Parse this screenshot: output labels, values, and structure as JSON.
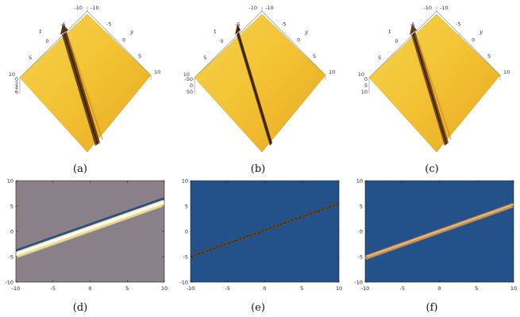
{
  "captions": [
    "(a)",
    "(b)",
    "(c)",
    "(d)",
    "(e)",
    "(f)"
  ],
  "surface_plots": [
    {
      "id": "a",
      "t_label": "t",
      "y_label": "y",
      "t_ticks": [
        "-10",
        "-5",
        "0",
        "5",
        "10"
      ],
      "y_ticks": [
        "-10",
        "-5",
        "0",
        "5",
        "10"
      ],
      "z_ticks": [
        "0",
        "2",
        "4",
        "6"
      ],
      "surface_color": "#f2c233",
      "ridge_color": "#5a3410"
    },
    {
      "id": "b",
      "t_label": "t",
      "y_label": "y",
      "t_ticks": [
        "-10",
        "-5",
        "0",
        "5",
        "10"
      ],
      "y_ticks": [
        "-10",
        "-5",
        "0",
        "5",
        "10"
      ],
      "z_ticks": [
        "-50",
        "0",
        "50"
      ],
      "surface_color": "#f2c233",
      "ridge_color": "#4a2a0c"
    },
    {
      "id": "c",
      "t_label": "t",
      "y_label": "y",
      "t_ticks": [
        "-10",
        "-5",
        "0",
        "5",
        "10"
      ],
      "y_ticks": [
        "-10",
        "-5",
        "0",
        "5",
        "10"
      ],
      "z_ticks": [
        "0",
        "5",
        "10"
      ],
      "surface_color": "#f2c233",
      "ridge_color": "#6a3e14"
    }
  ],
  "chart_data": [
    {
      "type": "heatmap",
      "id": "d",
      "x_ticks": [
        "-10",
        "-5",
        "0",
        "5",
        "10"
      ],
      "y_ticks": [
        "-10",
        "-5",
        "0",
        "5",
        "10"
      ],
      "xlim": [
        -10,
        10
      ],
      "ylim": [
        -10,
        10
      ],
      "background_color": "#8a8088",
      "line": {
        "x": [
          -10,
          10
        ],
        "y": [
          -4.5,
          5.8
        ]
      },
      "band_colors": [
        "#2a4e86",
        "#f4eec0",
        "#ffffff",
        "#e6d48e"
      ]
    },
    {
      "type": "heatmap",
      "id": "e",
      "x_ticks": [
        "-10",
        "-5",
        "0",
        "5",
        "10"
      ],
      "y_ticks": [
        "-10",
        "-5",
        "0",
        "5",
        "10"
      ],
      "xlim": [
        -10,
        10
      ],
      "ylim": [
        -10,
        10
      ],
      "background_color": "#23528a",
      "line": {
        "x": [
          -10,
          10
        ],
        "y": [
          -5,
          5.5
        ]
      },
      "band_colors": [
        "#6a4a22",
        "#1a1a1a"
      ]
    },
    {
      "type": "heatmap",
      "id": "f",
      "x_ticks": [
        "-10",
        "-5",
        "0",
        "5",
        "10"
      ],
      "y_ticks": [
        "-10",
        "-5",
        "0",
        "5",
        "10"
      ],
      "xlim": [
        -10,
        10
      ],
      "ylim": [
        -10,
        10
      ],
      "background_color": "#23528a",
      "line": {
        "x": [
          -10,
          10
        ],
        "y": [
          -5.2,
          5.2
        ]
      },
      "band_colors": [
        "#c89c62",
        "#f0c890",
        "#a87440"
      ]
    }
  ]
}
